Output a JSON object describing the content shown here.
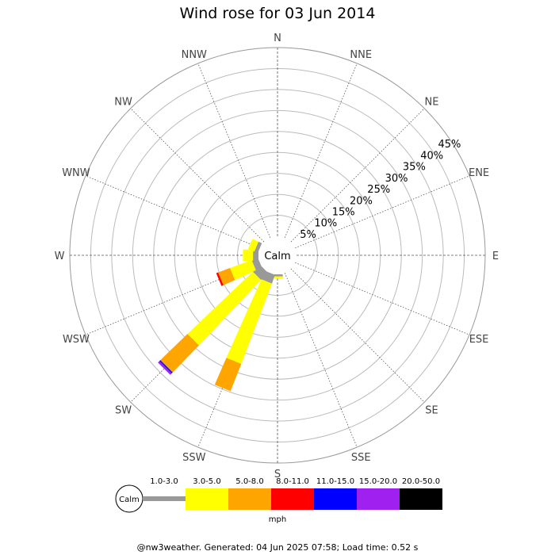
{
  "chart_data": {
    "type": "wind-rose",
    "title": "Wind rose for 03 Jun 2014",
    "directions": [
      "N",
      "NNE",
      "NE",
      "ENE",
      "E",
      "ESE",
      "SE",
      "SSE",
      "S",
      "SSW",
      "SW",
      "WSW",
      "W",
      "WNW",
      "NW",
      "NNW"
    ],
    "radial_ticks": [
      "5%",
      "10%",
      "15%",
      "20%",
      "25%",
      "30%",
      "35%",
      "40%",
      "45%"
    ],
    "radial_max": 45,
    "calm_label": "Calm",
    "unit": "mph",
    "speed_bins": [
      {
        "label": "1.0-3.0",
        "color": "#999999"
      },
      {
        "label": "3.0-5.0",
        "color": "#ffff00"
      },
      {
        "label": "5.0-8.0",
        "color": "#ffa500"
      },
      {
        "label": "8.0-11.0",
        "color": "#ff0000"
      },
      {
        "label": "11.0-15.0",
        "color": "#0000ff"
      },
      {
        "label": "15.0-20.0",
        "color": "#a020f0"
      },
      {
        "label": "20.0-50.0",
        "color": "#000000"
      }
    ],
    "series": [
      {
        "direction": "S",
        "values": [
          0.5,
          0.5,
          0,
          0,
          0,
          0,
          0
        ]
      },
      {
        "direction": "SSW",
        "values": [
          2.2,
          20.5,
          7.0,
          0,
          0,
          0,
          0
        ]
      },
      {
        "direction": "SW",
        "values": [
          2.4,
          21.5,
          9.0,
          0,
          0.3,
          0.5,
          0
        ]
      },
      {
        "direction": "WSW",
        "values": [
          1.6,
          5.5,
          3.0,
          0.5,
          0,
          0,
          0
        ]
      },
      {
        "direction": "W",
        "values": [
          1.3,
          2.4,
          0,
          0,
          0,
          0,
          0
        ]
      },
      {
        "direction": "WNW",
        "values": [
          0.9,
          1.6,
          0,
          0,
          0,
          0,
          0
        ]
      }
    ]
  },
  "footer": "@nw3weather. Generated: 04 Jun 2025 07:58; Load time: 0.52 s"
}
